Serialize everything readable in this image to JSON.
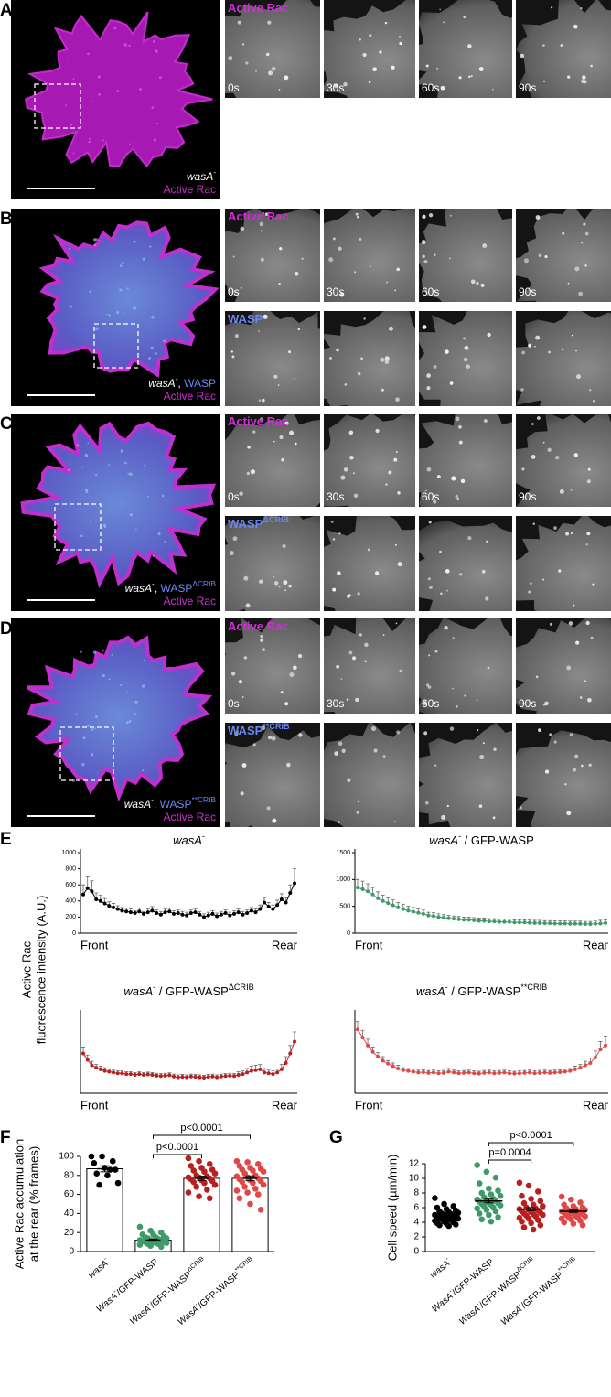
{
  "panels": [
    {
      "letter": "A",
      "label_lines": [
        [
          {
            "text": "wasA",
            "style": "italic"
          },
          {
            "text": "-",
            "style": "sup"
          }
        ],
        [
          {
            "text": "Active Rac",
            "color": "#d12ed6"
          }
        ]
      ],
      "rows": [
        {
          "channel": [
            {
              "text": "Active Rac",
              "color": "#d12ed6"
            }
          ],
          "times": [
            "0s",
            "30s",
            "60s",
            "90s"
          ]
        }
      ]
    },
    {
      "letter": "B",
      "label_lines": [
        [
          {
            "text": "wasA",
            "style": "italic"
          },
          {
            "text": "-",
            "style": "sup"
          },
          {
            "text": ", "
          },
          {
            "text": "WASP",
            "color": "#6b86f0"
          }
        ],
        [
          {
            "text": "Active Rac",
            "color": "#d12ed6"
          }
        ]
      ],
      "rows": [
        {
          "channel": [
            {
              "text": "Active Rac",
              "color": "#d12ed6"
            }
          ],
          "times": [
            "0s",
            "30s",
            "60s",
            "90s"
          ]
        },
        {
          "channel": [
            {
              "text": "WASP",
              "color": "#6b86f0"
            }
          ]
        }
      ]
    },
    {
      "letter": "C",
      "label_lines": [
        [
          {
            "text": "wasA",
            "style": "italic"
          },
          {
            "text": "-",
            "style": "sup"
          },
          {
            "text": ", "
          },
          {
            "text": "WASP",
            "color": "#6b86f0"
          },
          {
            "text": "ΔCRIB",
            "style": "sup",
            "color": "#6b86f0"
          }
        ],
        [
          {
            "text": "Active Rac",
            "color": "#d12ed6"
          }
        ]
      ],
      "rows": [
        {
          "channel": [
            {
              "text": "Active Rac",
              "color": "#d12ed6"
            }
          ],
          "times": [
            "0s",
            "30s",
            "60s",
            "90s"
          ]
        },
        {
          "channel": [
            {
              "text": "WASP",
              "color": "#6b86f0"
            },
            {
              "text": "ΔCRIB",
              "style": "sup",
              "color": "#6b86f0"
            }
          ]
        }
      ]
    },
    {
      "letter": "D",
      "label_lines": [
        [
          {
            "text": "wasA",
            "style": "italic"
          },
          {
            "text": "-",
            "style": "sup"
          },
          {
            "text": ", "
          },
          {
            "text": "WASP",
            "color": "#6b86f0"
          },
          {
            "text": "**CRIB",
            "style": "sup",
            "color": "#6b86f0"
          }
        ],
        [
          {
            "text": "Active Rac",
            "color": "#d12ed6"
          }
        ]
      ],
      "rows": [
        {
          "channel": [
            {
              "text": "Active Rac",
              "color": "#d12ed6"
            }
          ],
          "times": [
            "0s",
            "30s",
            "60s",
            "90s"
          ]
        },
        {
          "channel": [
            {
              "text": "WASP",
              "color": "#6b86f0"
            },
            {
              "text": "**CRIB",
              "style": "sup",
              "color": "#6b86f0"
            }
          ]
        }
      ]
    }
  ],
  "panel_e": {
    "letter": "E",
    "ylabel": [
      "Active Rac",
      "fluorescence intensity (A.U.)"
    ]
  },
  "chart_data": [
    {
      "type": "line",
      "title": [
        {
          "text": "wasA",
          "style": "italic"
        },
        {
          "text": "-",
          "style": "sup"
        }
      ],
      "xlabels": [
        "Front",
        "Rear"
      ],
      "ylim": [
        0,
        1000
      ],
      "yticks": [
        0,
        200,
        400,
        600,
        800,
        1000
      ],
      "series": [
        {
          "color": "#000000",
          "values": [
            480,
            560,
            520,
            420,
            400,
            370,
            340,
            320,
            300,
            280,
            270,
            260,
            250,
            270,
            240,
            260,
            280,
            250,
            230,
            260,
            270,
            240,
            250,
            230,
            220,
            250,
            260,
            230,
            200,
            220,
            240,
            210,
            230,
            250,
            220,
            240,
            260,
            230,
            250,
            280,
            260,
            300,
            380,
            330,
            300,
            350,
            420,
            380,
            500,
            620
          ],
          "error": [
            120,
            140,
            130,
            80,
            70,
            60,
            50,
            50,
            40,
            40,
            40,
            40,
            30,
            40,
            30,
            40,
            50,
            40,
            40,
            40,
            40,
            40,
            40,
            40,
            40,
            40,
            40,
            40,
            40,
            40,
            40,
            40,
            40,
            40,
            40,
            40,
            40,
            40,
            40,
            40,
            40,
            50,
            60,
            50,
            50,
            60,
            70,
            60,
            100,
            180
          ]
        }
      ]
    },
    {
      "type": "line",
      "title": [
        {
          "text": "wasA",
          "style": "italic"
        },
        {
          "text": "-",
          "style": "sup"
        },
        {
          "text": " / GFP-WASP"
        }
      ],
      "xlabels": [
        "Front",
        "Rear"
      ],
      "ylim": [
        0,
        1500
      ],
      "yticks": [
        0,
        500,
        1000,
        1500
      ],
      "series": [
        {
          "color": "#3f9a6a",
          "values": [
            850,
            820,
            780,
            720,
            650,
            600,
            560,
            520,
            480,
            450,
            420,
            400,
            380,
            360,
            330,
            320,
            300,
            290,
            280,
            270,
            260,
            250,
            250,
            240,
            230,
            230,
            220,
            220,
            210,
            210,
            210,
            200,
            200,
            200,
            195,
            190,
            190,
            185,
            185,
            180,
            180,
            180,
            175,
            175,
            175,
            170,
            170,
            175,
            180,
            190
          ],
          "error": [
            150,
            150,
            140,
            130,
            120,
            110,
            100,
            100,
            90,
            90,
            80,
            80,
            70,
            70,
            60,
            60,
            60,
            60,
            50,
            50,
            50,
            50,
            50,
            50,
            50,
            50,
            50,
            50,
            50,
            50,
            50,
            50,
            50,
            50,
            50,
            50,
            50,
            50,
            50,
            50,
            50,
            50,
            50,
            50,
            50,
            50,
            50,
            50,
            60,
            60
          ]
        }
      ]
    },
    {
      "type": "line",
      "title": [
        {
          "text": "wasA",
          "style": "italic"
        },
        {
          "text": "-",
          "style": "sup"
        },
        {
          "text": " / GFP-WASP"
        },
        {
          "text": "ΔCRIB",
          "style": "sup"
        }
      ],
      "xlabels": [
        "Front",
        "Rear"
      ],
      "ylim": [
        0,
        1000
      ],
      "series": [
        {
          "color": "#b81f1f",
          "values": [
            500,
            420,
            350,
            320,
            300,
            280,
            270,
            260,
            250,
            250,
            240,
            240,
            230,
            240,
            230,
            235,
            230,
            220,
            215,
            220,
            225,
            210,
            200,
            205,
            200,
            210,
            205,
            200,
            195,
            205,
            210,
            200,
            210,
            215,
            220,
            215,
            230,
            240,
            260,
            280,
            290,
            300,
            260,
            250,
            240,
            260,
            300,
            380,
            500,
            650
          ],
          "error": [
            80,
            60,
            50,
            40,
            40,
            40,
            30,
            30,
            30,
            30,
            30,
            30,
            30,
            30,
            30,
            30,
            30,
            30,
            30,
            30,
            30,
            30,
            30,
            30,
            30,
            30,
            30,
            30,
            30,
            30,
            30,
            30,
            30,
            30,
            30,
            30,
            40,
            40,
            50,
            60,
            60,
            60,
            50,
            40,
            40,
            40,
            60,
            80,
            100,
            120
          ]
        }
      ]
    },
    {
      "type": "line",
      "title": [
        {
          "text": "wasA",
          "style": "italic"
        },
        {
          "text": "-",
          "style": "sup"
        },
        {
          "text": " / GFP-WASP"
        },
        {
          "text": "**CRIB",
          "style": "sup"
        }
      ],
      "xlabels": [
        "Front",
        "Rear"
      ],
      "ylim": [
        0,
        1000
      ],
      "series": [
        {
          "color": "#e04848",
          "values": [
            800,
            700,
            600,
            520,
            460,
            410,
            370,
            340,
            310,
            290,
            280,
            270,
            260,
            265,
            255,
            260,
            250,
            255,
            270,
            260,
            250,
            255,
            260,
            250,
            245,
            255,
            260,
            250,
            255,
            260,
            250,
            245,
            250,
            255,
            260,
            250,
            255,
            260,
            255,
            260,
            265,
            270,
            280,
            300,
            320,
            350,
            380,
            450,
            550,
            600
          ],
          "error": [
            100,
            90,
            80,
            60,
            50,
            50,
            40,
            40,
            40,
            30,
            30,
            30,
            30,
            30,
            30,
            30,
            30,
            30,
            40,
            30,
            30,
            30,
            30,
            30,
            30,
            30,
            30,
            30,
            30,
            30,
            30,
            30,
            30,
            30,
            30,
            30,
            30,
            30,
            30,
            30,
            30,
            30,
            30,
            40,
            40,
            50,
            60,
            80,
            100,
            120
          ]
        }
      ]
    },
    {
      "type": "bar",
      "letter": "F",
      "ylabel": [
        "Active Rac accumulation",
        "at the rear (% frames)"
      ],
      "categories": [
        [
          {
            "text": "wasA",
            "style": "italic"
          },
          {
            "text": "-",
            "style": "sup"
          }
        ],
        [
          {
            "text": "WasA",
            "style": "italic"
          },
          {
            "text": "-",
            "style": "sup"
          },
          {
            "text": "/GFP-WASP"
          }
        ],
        [
          {
            "text": "WasA",
            "style": "italic"
          },
          {
            "text": "-",
            "style": "sup"
          },
          {
            "text": "/GFP-WASP"
          },
          {
            "text": "ΔCRIB",
            "style": "sup"
          }
        ],
        [
          {
            "text": "WasA",
            "style": "italic"
          },
          {
            "text": "-",
            "style": "sup"
          },
          {
            "text": "/GFP-WASP"
          },
          {
            "text": "**CRIB",
            "style": "sup"
          }
        ]
      ],
      "values": [
        87,
        12,
        77,
        77
      ],
      "errors": [
        3.2,
        1.1,
        2.2,
        2.6
      ],
      "colors": [
        "#000000",
        "#3f9a6a",
        "#b81f1f",
        "#e04848"
      ],
      "points": [
        [
          100,
          100,
          95,
          93,
          88,
          86,
          82,
          80,
          72,
          70,
          86
        ],
        [
          26,
          22,
          20,
          18,
          18,
          16,
          15,
          15,
          14,
          14,
          13,
          12,
          12,
          12,
          11,
          10,
          10,
          10,
          9,
          9,
          8,
          8,
          7,
          6,
          5
        ],
        [
          98,
          95,
          92,
          90,
          88,
          86,
          85,
          84,
          82,
          80,
          79,
          78,
          78,
          77,
          76,
          75,
          74,
          73,
          72,
          70,
          68,
          65,
          62,
          58,
          56
        ],
        [
          95,
          94,
          92,
          90,
          88,
          87,
          86,
          85,
          84,
          82,
          80,
          79,
          78,
          77,
          76,
          75,
          74,
          73,
          72,
          70,
          68,
          66,
          64,
          62,
          60,
          56,
          50,
          44
        ]
      ],
      "ylim": [
        0,
        100
      ],
      "yticks": [
        0,
        20,
        40,
        60,
        80,
        100
      ],
      "annotations": [
        "p<0.0001",
        "p<0.0001"
      ]
    },
    {
      "type": "dot",
      "letter": "G",
      "ylabel": [
        "Cell speed (µm/min)"
      ],
      "categories": [
        [
          {
            "text": "wasA",
            "style": "italic"
          },
          {
            "text": "-",
            "style": "sup"
          }
        ],
        [
          {
            "text": "WasA",
            "style": "italic"
          },
          {
            "text": "-",
            "style": "sup"
          },
          {
            "text": "/GFP-WASP"
          }
        ],
        [
          {
            "text": "WasA",
            "style": "italic"
          },
          {
            "text": "-",
            "style": "sup"
          },
          {
            "text": "/GFP-WASP"
          },
          {
            "text": "ΔCRIB",
            "style": "sup"
          }
        ],
        [
          {
            "text": "WasA",
            "style": "italic"
          },
          {
            "text": "-",
            "style": "sup"
          },
          {
            "text": "/GFP-WASP"
          },
          {
            "text": "**CRIB",
            "style": "sup"
          }
        ]
      ],
      "values": [
        5.0,
        6.9,
        5.8,
        5.5
      ],
      "errors": [
        0.15,
        0.25,
        0.2,
        0.15
      ],
      "colors": [
        "#000000",
        "#3f9a6a",
        "#b81f1f",
        "#e04848"
      ],
      "points": [
        [
          7.3,
          6.5,
          6.2,
          6.0,
          5.8,
          5.6,
          5.5,
          5.4,
          5.3,
          5.2,
          5.1,
          5.0,
          5.0,
          4.9,
          4.8,
          4.8,
          4.7,
          4.6,
          4.5,
          4.5,
          4.4,
          4.3,
          4.2,
          4.1,
          4.0,
          3.9,
          3.8,
          3.7,
          3.6,
          3.5
        ],
        [
          11.8,
          10.9,
          10.1,
          9.3,
          8.6,
          8.3,
          8.0,
          7.8,
          7.6,
          7.4,
          7.2,
          7.1,
          7.0,
          6.9,
          6.8,
          6.7,
          6.6,
          6.5,
          6.4,
          6.3,
          6.2,
          6.0,
          5.9,
          5.7,
          5.5,
          5.2,
          5.0,
          4.7,
          4.4,
          4.1
        ],
        [
          9.4,
          9.0,
          8.2,
          7.6,
          7.2,
          6.9,
          6.6,
          6.4,
          6.2,
          6.0,
          5.9,
          5.8,
          5.7,
          5.6,
          5.5,
          5.4,
          5.3,
          5.2,
          5.1,
          5.0,
          4.9,
          4.8,
          4.6,
          4.5,
          4.3,
          4.1,
          3.9,
          3.6,
          3.3,
          3.0
        ],
        [
          7.5,
          7.1,
          6.7,
          6.4,
          6.2,
          6.0,
          5.9,
          5.8,
          5.7,
          5.6,
          5.5,
          5.5,
          5.4,
          5.3,
          5.3,
          5.2,
          5.1,
          5.0,
          4.9,
          4.8,
          4.7,
          4.6,
          4.5,
          4.4,
          4.2,
          4.0,
          3.8,
          3.6
        ]
      ],
      "ylim": [
        0,
        12
      ],
      "yticks": [
        0,
        2,
        4,
        6,
        8,
        10,
        12
      ],
      "annotations": [
        "p=0.0004",
        "p<0.0001"
      ]
    }
  ]
}
